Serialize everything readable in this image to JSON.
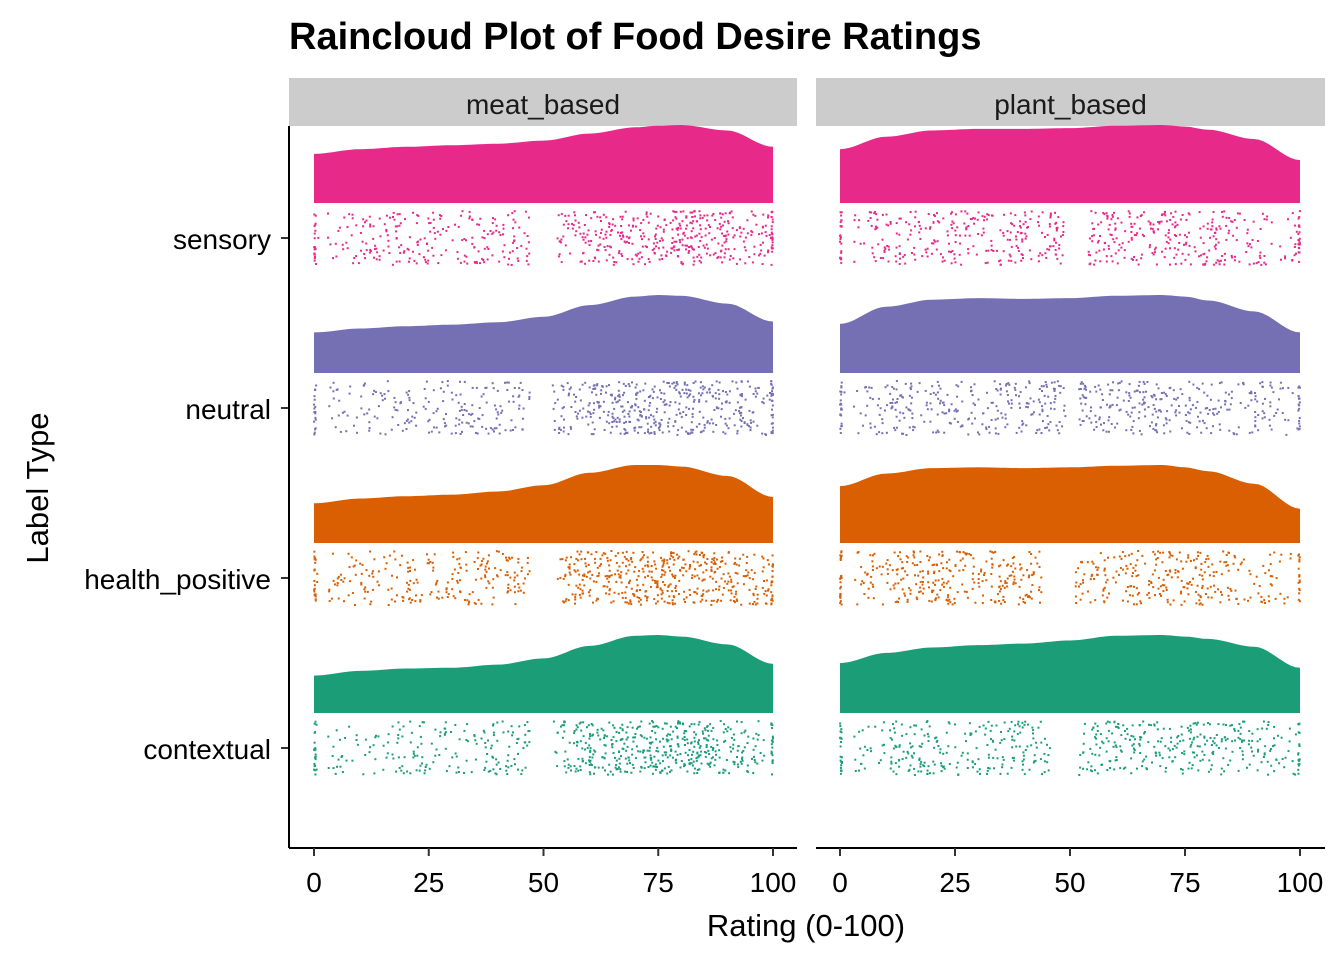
{
  "chart_data": {
    "type": "raincloud",
    "title": "Raincloud Plot of Food Desire Ratings",
    "xlabel": "Rating (0-100)",
    "ylabel": "Label Type",
    "xlim": [
      0,
      100
    ],
    "x_ticks": [
      0,
      25,
      50,
      75,
      100
    ],
    "x_tick_labels": [
      "0",
      "25",
      "50",
      "75",
      "100"
    ],
    "categories": [
      "sensory",
      "neutral",
      "health_positive",
      "contextual"
    ],
    "category_colors": {
      "sensory": "#E7298A",
      "neutral": "#7570B3",
      "health_positive": "#D95F02",
      "contextual": "#1B9E77"
    },
    "strip_color": "#CCCCCC",
    "grid": false,
    "legend": "none",
    "facets": [
      {
        "name": "meat_based",
        "density_x": [
          0,
          10,
          20,
          30,
          40,
          50,
          60,
          70,
          75,
          80,
          90,
          100
        ],
        "series": [
          {
            "category": "sensory",
            "density": [
              0.63,
              0.69,
              0.72,
              0.74,
              0.76,
              0.8,
              0.89,
              0.97,
              0.99,
              1.0,
              0.93,
              0.72
            ]
          },
          {
            "category": "neutral",
            "density": [
              0.52,
              0.57,
              0.6,
              0.62,
              0.65,
              0.72,
              0.87,
              0.98,
              1.0,
              0.99,
              0.89,
              0.66
            ]
          },
          {
            "category": "health_positive",
            "density": [
              0.51,
              0.57,
              0.6,
              0.62,
              0.66,
              0.74,
              0.9,
              1.0,
              1.0,
              0.98,
              0.86,
              0.59
            ]
          },
          {
            "category": "contextual",
            "density": [
              0.48,
              0.54,
              0.57,
              0.58,
              0.62,
              0.7,
              0.86,
              0.99,
              1.0,
              0.98,
              0.88,
              0.63
            ]
          }
        ],
        "rain": [
          {
            "category": "sensory",
            "points": 620,
            "gaps": [
              [
                1,
                3
              ],
              [
                47,
                53
              ]
            ]
          },
          {
            "category": "neutral",
            "points": 620,
            "gaps": [
              [
                1,
                3
              ],
              [
                47,
                52
              ]
            ]
          },
          {
            "category": "health_positive",
            "points": 680,
            "gaps": [
              [
                1,
                3
              ],
              [
                47,
                53
              ]
            ]
          },
          {
            "category": "contextual",
            "points": 640,
            "gaps": [
              [
                1,
                3
              ],
              [
                47,
                52
              ]
            ]
          }
        ]
      },
      {
        "name": "plant_based",
        "density_x": [
          0,
          10,
          20,
          30,
          40,
          50,
          60,
          70,
          75,
          80,
          90,
          100
        ],
        "series": [
          {
            "category": "sensory",
            "density": [
              0.69,
              0.85,
              0.93,
              0.95,
              0.95,
              0.96,
              0.99,
              1.0,
              0.98,
              0.94,
              0.82,
              0.55
            ]
          },
          {
            "category": "neutral",
            "density": [
              0.63,
              0.85,
              0.94,
              0.96,
              0.95,
              0.96,
              0.99,
              1.0,
              0.98,
              0.93,
              0.79,
              0.52
            ]
          },
          {
            "category": "health_positive",
            "density": [
              0.73,
              0.89,
              0.96,
              0.97,
              0.96,
              0.97,
              0.99,
              1.0,
              0.97,
              0.92,
              0.76,
              0.44
            ]
          },
          {
            "category": "contextual",
            "density": [
              0.64,
              0.77,
              0.84,
              0.87,
              0.89,
              0.93,
              0.99,
              1.0,
              0.98,
              0.95,
              0.85,
              0.58
            ]
          }
        ],
        "rain": [
          {
            "category": "sensory",
            "points": 560,
            "gaps": [
              [
                1,
                3
              ],
              [
                49,
                54
              ]
            ]
          },
          {
            "category": "neutral",
            "points": 560,
            "gaps": [
              [
                1,
                3
              ],
              [
                49,
                52
              ]
            ]
          },
          {
            "category": "health_positive",
            "points": 560,
            "gaps": [
              [
                1,
                3
              ],
              [
                44,
                51
              ]
            ]
          },
          {
            "category": "contextual",
            "points": 540,
            "gaps": [
              [
                1,
                3
              ],
              [
                46,
                52
              ]
            ]
          }
        ]
      }
    ]
  }
}
